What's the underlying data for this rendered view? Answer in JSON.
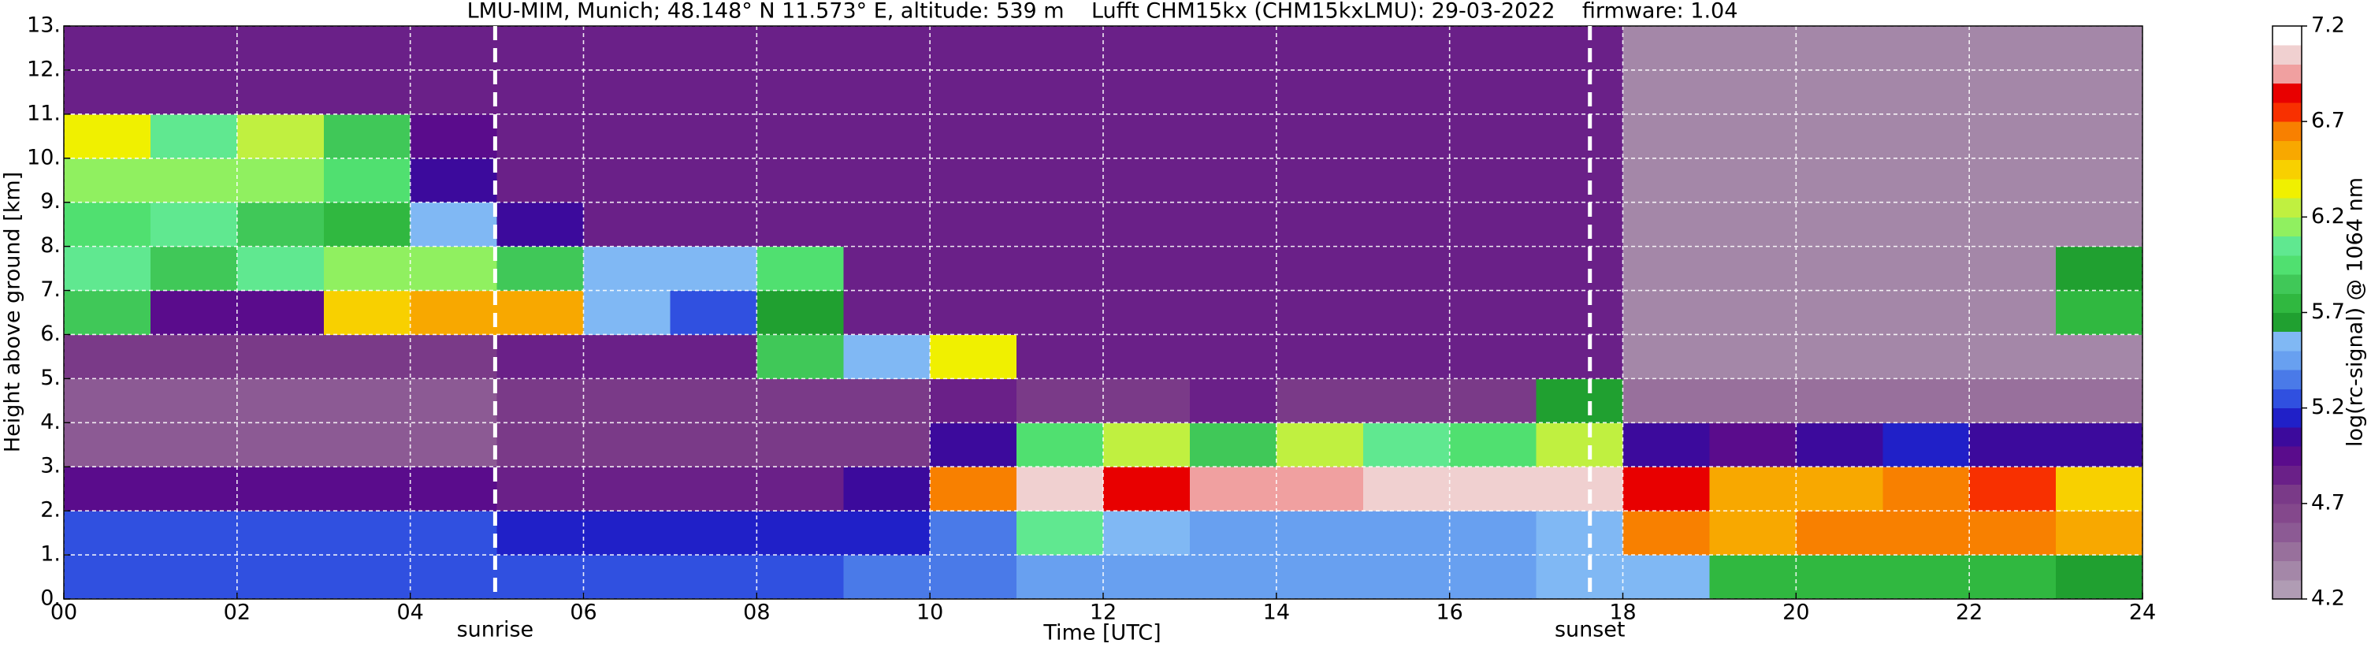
{
  "chart_data": {
    "type": "heatmap",
    "title": "LMU-MIM, Munich; 48.148° N 11.573° E, altitude: 539 m    Lufft CHM15kx (CHM15kxLMU): 29-03-2022    firmware: 1.04",
    "x_label": "Time [UTC]",
    "y_label": "Height above ground [km]",
    "colorbar_label": "log(rc-signal) @ 1064 nm",
    "xlim": [
      0,
      24
    ],
    "ylim": [
      0,
      13
    ],
    "xticks": [
      {
        "value": 0,
        "label": "00"
      },
      {
        "value": 2,
        "label": "02"
      },
      {
        "value": 4,
        "label": "04"
      },
      {
        "value": 6,
        "label": "06"
      },
      {
        "value": 8,
        "label": "08"
      },
      10,
      12,
      14,
      16,
      18,
      20,
      22,
      24
    ],
    "yticks": [
      {
        "value": 0,
        "label": "0."
      },
      {
        "value": 1,
        "label": "1."
      },
      {
        "value": 2,
        "label": "2."
      },
      {
        "value": 3,
        "label": "3."
      },
      {
        "value": 4,
        "label": "4."
      },
      {
        "value": 5,
        "label": "5."
      },
      {
        "value": 6,
        "label": "6."
      },
      {
        "value": 7,
        "label": "7."
      },
      {
        "value": 8,
        "label": "8."
      },
      {
        "value": 9,
        "label": "9."
      },
      {
        "value": 10,
        "label": "10."
      },
      {
        "value": 11,
        "label": "11."
      },
      {
        "value": 12,
        "label": "12."
      },
      {
        "value": 13,
        "label": "13."
      }
    ],
    "grid": true,
    "grid_color": "#ffffff",
    "clim": [
      4.2,
      7.2
    ],
    "cticks": [
      4.2,
      4.7,
      5.2,
      5.7,
      6.2,
      6.7,
      7.2
    ],
    "colormap": [
      "#b09cb4",
      "#a487a8",
      "#98709c",
      "#8c5a94",
      "#84488c",
      "#7a3a88",
      "#6a2088",
      "#5a0c8c",
      "#3c0a9c",
      "#2020c8",
      "#3050e0",
      "#4a7ae8",
      "#68a0f0",
      "#80b8f4",
      "#20a030",
      "#30b840",
      "#40c858",
      "#50e070",
      "#60e890",
      "#90f060",
      "#c0f040",
      "#f0f000",
      "#f8d000",
      "#f8a800",
      "#f88000",
      "#f83000",
      "#e80000",
      "#f0a0a0",
      "#f0d0d0",
      "#ffffff"
    ],
    "xbins": [
      0,
      1,
      2,
      3,
      4,
      5,
      6,
      7,
      8,
      9,
      10,
      11,
      12,
      13,
      14,
      15,
      16,
      17,
      18,
      19,
      20,
      21,
      22,
      23,
      24
    ],
    "ybins": [
      0,
      1,
      2,
      3,
      4,
      5,
      6,
      7,
      8,
      9,
      10,
      11,
      12,
      13
    ],
    "z": [
      [
        5.2,
        5.2,
        5.2,
        5.2,
        5.2,
        5.2,
        5.2,
        5.2,
        5.2,
        5.3,
        5.3,
        5.4,
        5.4,
        5.4,
        5.4,
        5.4,
        5.4,
        5.5,
        5.5,
        5.7,
        5.7,
        5.7,
        5.7,
        5.6
      ],
      [
        5.2,
        5.2,
        5.2,
        5.2,
        5.2,
        5.1,
        5.1,
        5.1,
        5.1,
        5.1,
        5.3,
        6.0,
        5.5,
        5.4,
        5.4,
        5.4,
        5.4,
        5.5,
        6.6,
        6.5,
        6.6,
        6.6,
        6.6,
        6.5
      ],
      [
        4.9,
        4.9,
        4.9,
        4.9,
        4.9,
        4.8,
        4.8,
        4.8,
        4.8,
        5.0,
        6.6,
        7.0,
        6.8,
        6.9,
        6.9,
        7.0,
        7.0,
        7.0,
        6.8,
        6.5,
        6.5,
        6.6,
        6.7,
        6.4
      ],
      [
        4.5,
        4.5,
        4.5,
        4.5,
        4.5,
        4.7,
        4.7,
        4.7,
        4.7,
        4.7,
        5.0,
        5.9,
        6.2,
        5.8,
        6.2,
        6.0,
        5.9,
        6.2,
        5.0,
        4.9,
        5.0,
        5.1,
        5.0,
        5.0
      ],
      [
        4.5,
        4.5,
        4.5,
        4.5,
        4.5,
        4.7,
        4.7,
        4.7,
        4.7,
        4.7,
        4.8,
        4.7,
        4.7,
        4.8,
        4.7,
        4.7,
        4.7,
        5.6,
        4.4,
        4.4,
        4.4,
        4.4,
        4.4,
        4.4
      ],
      [
        4.7,
        4.7,
        4.7,
        4.7,
        4.7,
        4.8,
        4.8,
        4.8,
        5.8,
        5.5,
        6.3,
        4.8,
        4.8,
        4.8,
        4.8,
        4.8,
        4.8,
        4.8,
        4.3,
        4.3,
        4.3,
        4.3,
        4.3,
        4.3
      ],
      [
        5.8,
        4.9,
        4.9,
        6.4,
        6.5,
        6.5,
        5.5,
        5.2,
        5.6,
        4.8,
        4.8,
        4.8,
        4.8,
        4.8,
        4.8,
        4.8,
        4.8,
        4.8,
        4.3,
        4.3,
        4.3,
        4.3,
        4.3,
        5.7
      ],
      [
        6.0,
        5.8,
        6.0,
        6.1,
        6.1,
        5.8,
        5.5,
        5.5,
        5.9,
        4.8,
        4.8,
        4.8,
        4.8,
        4.8,
        4.8,
        4.8,
        4.8,
        4.8,
        4.3,
        4.3,
        4.3,
        4.3,
        4.3,
        5.6
      ],
      [
        5.9,
        6.0,
        5.8,
        5.7,
        5.5,
        5.0,
        4.8,
        4.8,
        4.8,
        4.8,
        4.8,
        4.8,
        4.8,
        4.8,
        4.8,
        4.8,
        4.8,
        4.8,
        4.3,
        4.3,
        4.3,
        4.3,
        4.3,
        4.3
      ],
      [
        6.1,
        6.1,
        6.1,
        5.9,
        5.0,
        4.8,
        4.8,
        4.8,
        4.8,
        4.8,
        4.8,
        4.8,
        4.8,
        4.8,
        4.8,
        4.8,
        4.8,
        4.8,
        4.3,
        4.3,
        4.3,
        4.3,
        4.3,
        4.3
      ],
      [
        6.3,
        6.0,
        6.2,
        5.8,
        4.9,
        4.8,
        4.8,
        4.8,
        4.8,
        4.8,
        4.8,
        4.8,
        4.8,
        4.8,
        4.8,
        4.8,
        4.8,
        4.8,
        4.3,
        4.3,
        4.3,
        4.3,
        4.3,
        4.3
      ],
      [
        4.8,
        4.8,
        4.8,
        4.8,
        4.8,
        4.8,
        4.8,
        4.8,
        4.8,
        4.8,
        4.8,
        4.8,
        4.8,
        4.8,
        4.8,
        4.8,
        4.8,
        4.8,
        4.3,
        4.3,
        4.3,
        4.3,
        4.3,
        4.3
      ],
      [
        4.8,
        4.8,
        4.8,
        4.8,
        4.8,
        4.8,
        4.8,
        4.8,
        4.8,
        4.8,
        4.8,
        4.8,
        4.8,
        4.8,
        4.8,
        4.8,
        4.8,
        4.8,
        4.3,
        4.3,
        4.3,
        4.3,
        4.3,
        4.3
      ]
    ],
    "annotations": [
      {
        "text": "sunrise",
        "x": 4.98
      },
      {
        "text": "sunset",
        "x": 17.62
      }
    ]
  }
}
